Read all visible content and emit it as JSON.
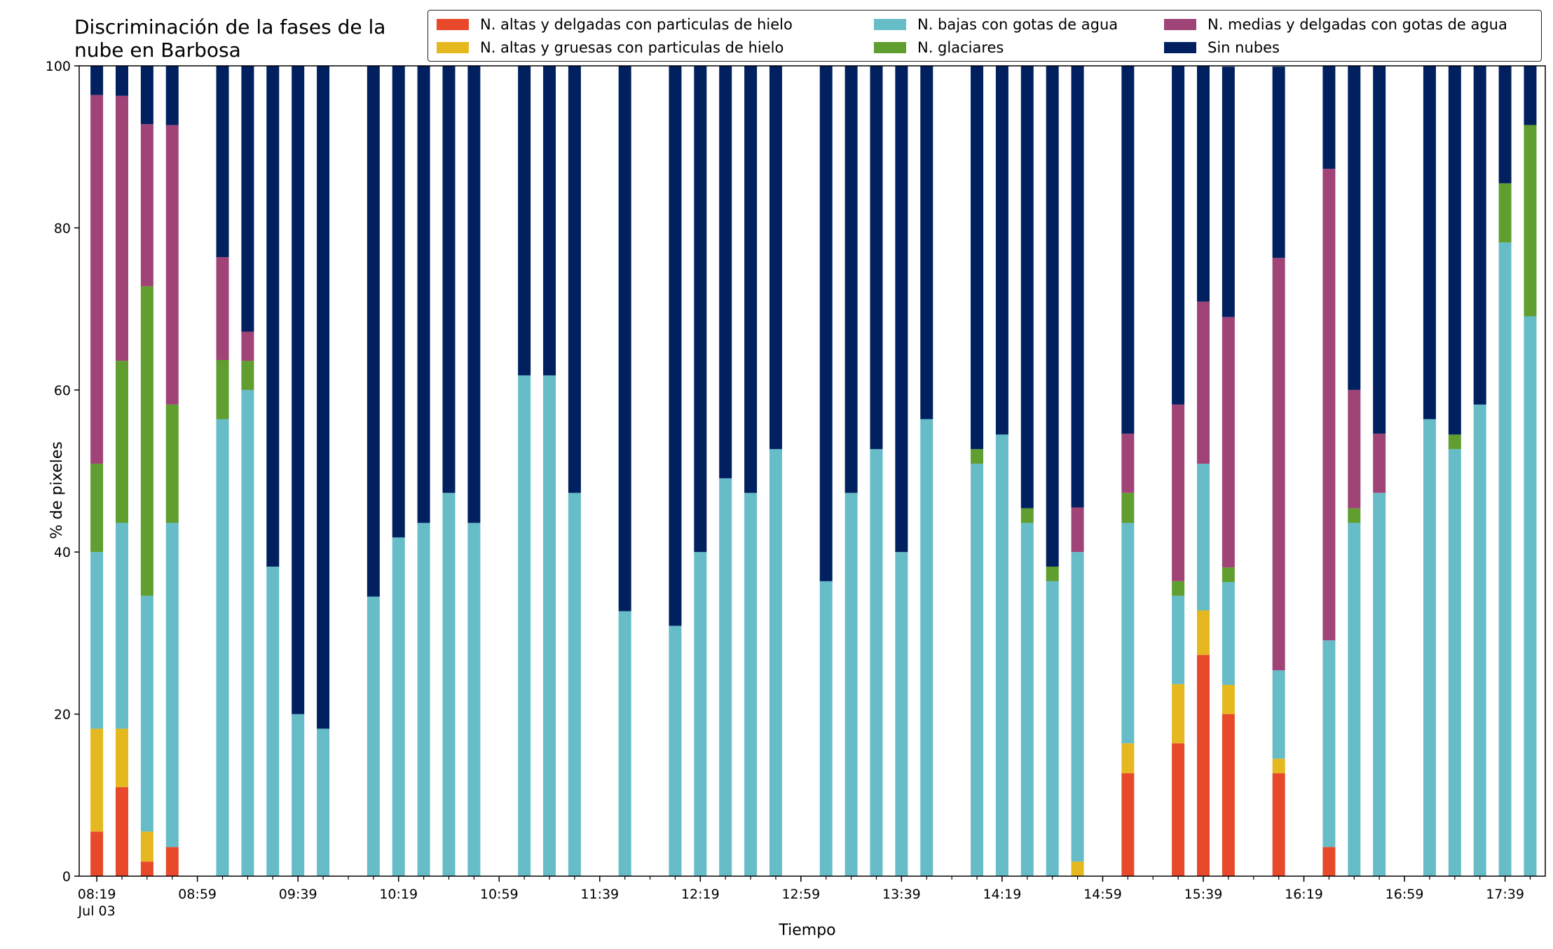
{
  "chart_data": {
    "type": "bar",
    "stacked": true,
    "title_lines": [
      "Discriminación de la fases de la",
      "nube en Barbosa"
    ],
    "xlabel": "Tiempo",
    "ylabel": "% de pixeles",
    "ylim": [
      0,
      100
    ],
    "yticks": [
      0,
      20,
      40,
      60,
      80,
      100
    ],
    "xlim": [
      "08:12",
      "17:55"
    ],
    "xticks": [
      {
        "time": "08:19",
        "label": "08:19",
        "sublabel": "Jul 03"
      },
      {
        "time": "08:59",
        "label": "08:59"
      },
      {
        "time": "09:39",
        "label": "09:39"
      },
      {
        "time": "10:19",
        "label": "10:19"
      },
      {
        "time": "10:59",
        "label": "10:59"
      },
      {
        "time": "11:39",
        "label": "11:39"
      },
      {
        "time": "12:19",
        "label": "12:19"
      },
      {
        "time": "12:59",
        "label": "12:59"
      },
      {
        "time": "13:39",
        "label": "13:39"
      },
      {
        "time": "14:19",
        "label": "14:19"
      },
      {
        "time": "14:59",
        "label": "14:59"
      },
      {
        "time": "15:39",
        "label": "15:39"
      },
      {
        "time": "16:19",
        "label": "16:19"
      },
      {
        "time": "16:59",
        "label": "16:59"
      },
      {
        "time": "17:39",
        "label": "17:39"
      }
    ],
    "minor_tick_minutes": 10,
    "legend_position": "top-right",
    "x": [
      "08:19",
      "08:29",
      "08:39",
      "08:49",
      "09:09",
      "09:19",
      "09:29",
      "09:39",
      "09:49",
      "10:09",
      "10:19",
      "10:29",
      "10:39",
      "10:49",
      "11:09",
      "11:19",
      "11:29",
      "11:49",
      "12:09",
      "12:19",
      "12:29",
      "12:39",
      "12:49",
      "13:09",
      "13:19",
      "13:29",
      "13:39",
      "13:49",
      "14:09",
      "14:19",
      "14:29",
      "14:39",
      "14:49",
      "15:09",
      "15:29",
      "15:39",
      "15:49",
      "16:09",
      "16:29",
      "16:39",
      "16:49",
      "17:09",
      "17:19",
      "17:29",
      "17:39",
      "17:49"
    ],
    "series": [
      {
        "name": "N. altas y delgadas con particulas de hielo",
        "color": "#e8492b",
        "values": [
          5.5,
          11,
          1.8,
          3.6,
          0,
          0,
          0,
          0,
          0,
          0,
          0,
          0,
          0,
          0,
          0,
          0,
          0,
          0,
          0,
          0,
          0,
          0,
          0,
          0,
          0,
          0,
          0,
          0,
          0,
          0,
          0,
          0,
          0,
          12.7,
          16.4,
          27.3,
          20,
          12.7,
          3.6,
          0,
          0,
          0,
          0,
          0,
          0,
          0
        ]
      },
      {
        "name": "N. altas y gruesas con particulas de hielo",
        "color": "#e6b81f",
        "values": [
          12.7,
          7.2,
          3.7,
          0,
          0,
          0,
          0,
          0,
          0,
          0,
          0,
          0,
          0,
          0,
          0,
          0,
          0,
          0,
          0,
          0,
          0,
          0,
          0,
          0,
          0,
          0,
          0,
          0,
          0,
          0,
          0,
          0,
          1.8,
          3.7,
          7.3,
          5.5,
          3.6,
          1.8,
          0,
          0,
          0,
          0,
          0,
          0,
          0,
          0
        ]
      },
      {
        "name": "N. bajas con gotas de agua",
        "color": "#66bdc8",
        "values": [
          21.8,
          25.4,
          29.1,
          40,
          56.4,
          60,
          38.2,
          20,
          18.2,
          34.5,
          41.8,
          43.6,
          47.3,
          43.6,
          61.8,
          61.8,
          47.3,
          32.7,
          30.9,
          40,
          49.1,
          47.3,
          52.7,
          36.4,
          47.3,
          52.7,
          40,
          56.4,
          50.9,
          54.5,
          43.6,
          36.4,
          38.2,
          27.2,
          10.9,
          18.1,
          12.7,
          10.9,
          25.5,
          43.6,
          47.3,
          56.4,
          52.7,
          58.2,
          78.2,
          69.1
        ]
      },
      {
        "name": "N. glaciares",
        "color": "#5f9e2f",
        "values": [
          10.9,
          20,
          38.2,
          14.6,
          7.3,
          3.6,
          0,
          0,
          0,
          0,
          0,
          0,
          0,
          0,
          0,
          0,
          0,
          0,
          0,
          0,
          0,
          0,
          0,
          0,
          0,
          0,
          0,
          0,
          1.8,
          0,
          1.8,
          1.8,
          0,
          3.7,
          1.8,
          0,
          1.8,
          0,
          0,
          1.8,
          0,
          0,
          1.8,
          0,
          7.3,
          23.6
        ]
      },
      {
        "name": "N. medias y delgadas con gotas de agua",
        "color": "#a04478",
        "values": [
          45.5,
          32.7,
          20,
          34.5,
          12.7,
          3.6,
          0,
          0,
          0,
          0,
          0,
          0,
          0,
          0,
          0,
          0,
          0,
          0,
          0,
          0,
          0,
          0,
          0,
          0,
          0,
          0,
          0,
          0,
          0,
          0,
          0,
          0,
          5.5,
          7.3,
          21.8,
          20,
          30.9,
          50.9,
          58.2,
          14.6,
          7.3,
          0,
          0,
          0,
          0,
          0
        ]
      },
      {
        "name": "Sin nubes",
        "color": "#002060",
        "values": [
          3.6,
          3.7,
          7.2,
          7.3,
          23.6,
          32.8,
          61.8,
          80,
          81.8,
          65.5,
          58.2,
          56.4,
          52.7,
          56.4,
          38.2,
          38.2,
          52.7,
          67.3,
          69.1,
          60,
          50.9,
          52.7,
          47.3,
          63.6,
          52.7,
          47.3,
          60,
          43.6,
          47.3,
          45.5,
          54.6,
          61.8,
          54.5,
          45.4,
          41.8,
          29.1,
          30.9,
          23.6,
          12.7,
          40,
          45.4,
          43.6,
          45.5,
          41.8,
          14.5,
          7.3
        ]
      }
    ]
  }
}
